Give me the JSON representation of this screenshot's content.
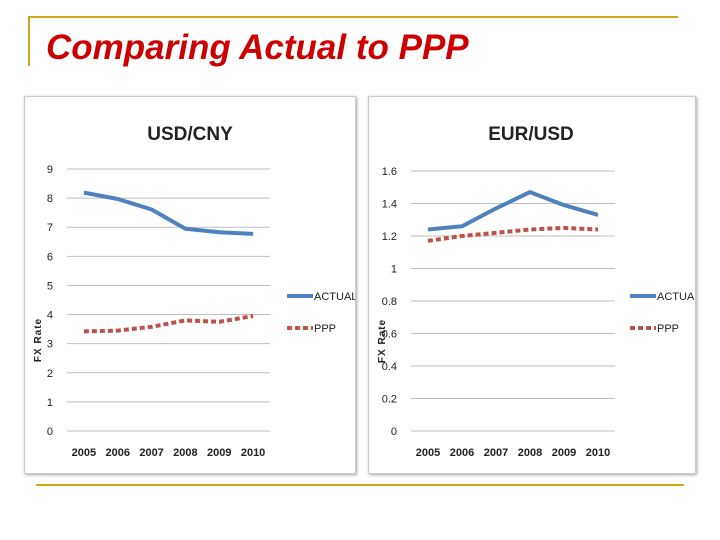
{
  "slide": {
    "title": "Comparing Actual to PPP",
    "accent_color": "#c9aa1e",
    "title_color": "#cc0000"
  },
  "chart_data": [
    {
      "type": "line",
      "title": "USD/CNY",
      "xlabel": "",
      "ylabel": "FX Rate",
      "categories": [
        "2005",
        "2006",
        "2007",
        "2008",
        "2009",
        "2010"
      ],
      "ylim": [
        0,
        9
      ],
      "yticks": [
        "0",
        "1",
        "2",
        "3",
        "4",
        "5",
        "6",
        "7",
        "8",
        "9"
      ],
      "grid": true,
      "legend": "right",
      "series": [
        {
          "name": "ACTUAL",
          "values": [
            8.19,
            7.97,
            7.61,
            6.95,
            6.83,
            6.77
          ],
          "color": "#4f81bd",
          "dash": false
        },
        {
          "name": "PPP",
          "values": [
            3.42,
            3.45,
            3.58,
            3.8,
            3.75,
            3.95
          ],
          "color": "#c0504d",
          "dash": true
        }
      ]
    },
    {
      "type": "line",
      "title": "EUR/USD",
      "xlabel": "",
      "ylabel": "FX Rate",
      "categories": [
        "2005",
        "2006",
        "2007",
        "2008",
        "2009",
        "2010"
      ],
      "ylim": [
        0,
        1.6
      ],
      "yticks": [
        "0",
        "0.2",
        "0.4",
        "0.6",
        "0.8",
        "1",
        "1.2",
        "1.4",
        "1.6"
      ],
      "grid": true,
      "legend": "right",
      "series": [
        {
          "name": "ACTUAL",
          "values": [
            1.24,
            1.26,
            1.37,
            1.47,
            1.39,
            1.33
          ],
          "color": "#4f81bd",
          "dash": false
        },
        {
          "name": "PPP",
          "values": [
            1.17,
            1.2,
            1.22,
            1.24,
            1.25,
            1.24
          ],
          "color": "#c0504d",
          "dash": true
        }
      ]
    }
  ]
}
